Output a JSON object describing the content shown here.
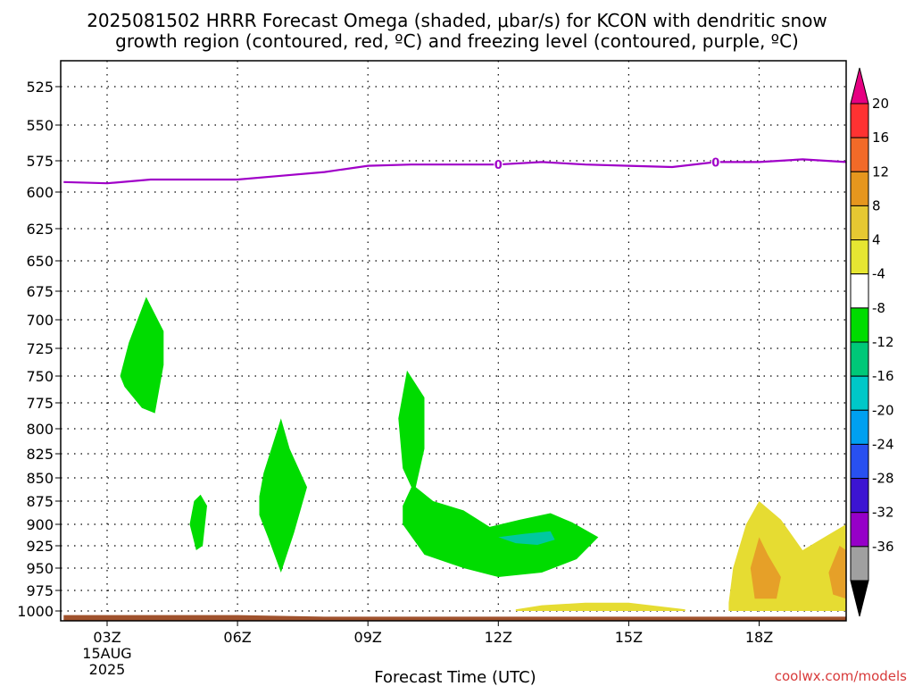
{
  "title_line1": "2025081502 HRRR Forecast Omega (shaded, μbar/s) for KCON with dendritic snow",
  "title_line2": "growth region (contoured, red, ºC) and freezing level (contoured, purple, ºC)",
  "credit": "coolwx.com/models",
  "colors": {
    "freezing_line": "#a000c8",
    "ground": "#a0522d",
    "green": "#00dc00",
    "teal": "#00c8a0",
    "yellow": "#e6dc32",
    "orange": "#e6a028"
  },
  "chart_data": {
    "type": "contour",
    "xlabel": "Forecast Time (UTC)",
    "ylabel": "",
    "x_tick_labels": [
      "03Z",
      "06Z",
      "09Z",
      "12Z",
      "15Z",
      "18Z"
    ],
    "x_first_tick_sub": [
      "15AUG",
      "2025"
    ],
    "y_tick_labels": [
      "525",
      "550",
      "575",
      "600",
      "625",
      "650",
      "675",
      "700",
      "725",
      "750",
      "775",
      "800",
      "825",
      "850",
      "875",
      "900",
      "925",
      "950",
      "975",
      "1000"
    ],
    "y_range_hpa": [
      505,
      1012
    ],
    "freezing_level": {
      "label": "0",
      "points_hour_hpa": [
        [
          2,
          592
        ],
        [
          3,
          593
        ],
        [
          4,
          590
        ],
        [
          6,
          590
        ],
        [
          7,
          587
        ],
        [
          8,
          584
        ],
        [
          9,
          579
        ],
        [
          10,
          578
        ],
        [
          11,
          578
        ],
        [
          12,
          578
        ],
        [
          13,
          576
        ],
        [
          14,
          578
        ],
        [
          15,
          579
        ],
        [
          16,
          580
        ],
        [
          17,
          576
        ],
        [
          18,
          576
        ],
        [
          19,
          574
        ],
        [
          20,
          576
        ]
      ],
      "label_positions_hour": [
        12,
        17
      ]
    },
    "colorbar": {
      "labels": [
        "20",
        "16",
        "12",
        "8",
        "4",
        "-4",
        "-8",
        "-12",
        "-16",
        "-20",
        "-24",
        "-28",
        "-32",
        "-36"
      ],
      "colors": [
        "#ff3232",
        "#f26a28",
        "#e6961e",
        "#e6c832",
        "#e6e632",
        "#ffffff",
        "#00dc00",
        "#00c878",
        "#00c8c8",
        "#00a0f0",
        "#2850f0",
        "#3c14d2",
        "#9600c8",
        "#a0a0a0"
      ],
      "top_arrow": "#e60082",
      "bottom_arrow": "#000000"
    }
  }
}
